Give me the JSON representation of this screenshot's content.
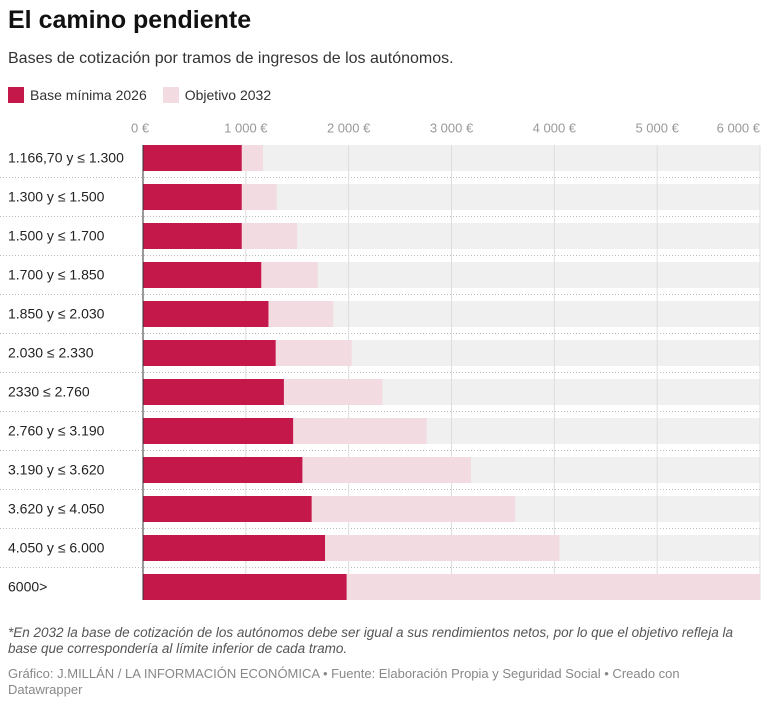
{
  "chart_data": {
    "type": "bar",
    "title": "El camino pendiente",
    "subtitle": "Bases de cotización por tramos de ingresos de los autónomos.",
    "categories": [
      "1.166,70 y ≤ 1.300",
      "1.300 y ≤ 1.500",
      "1.500 y ≤ 1.700",
      "1.700 y ≤ 1.850",
      "1.850 y ≤ 2.030",
      "2.030 ≤ 2.330",
      "2330 ≤ 2.760",
      "2.760 y ≤ 3.190",
      "3.190 y ≤ 3.620",
      "3.620 y ≤ 4.050",
      "4.050 y ≤ 6.000",
      "6000>"
    ],
    "series": [
      {
        "name": "Objetivo 2032",
        "color": "#f2dce2",
        "values": [
          1166.7,
          1300,
          1500,
          1700,
          1850,
          2030,
          2330,
          2760,
          3190,
          3620,
          4050,
          6000
        ]
      },
      {
        "name": "Base mínima 2026",
        "color": "#c4174a",
        "values": [
          960,
          960,
          960,
          1150,
          1220,
          1290,
          1370,
          1460,
          1550,
          1640,
          1770,
          1980
        ]
      }
    ],
    "xlim": [
      0,
      6000
    ],
    "xticks": [
      {
        "value": 0,
        "label": "0 €"
      },
      {
        "value": 1000,
        "label": "1 000 €"
      },
      {
        "value": 2000,
        "label": "2 000 €"
      },
      {
        "value": 3000,
        "label": "3 000 €"
      },
      {
        "value": 4000,
        "label": "4 000 €"
      },
      {
        "value": 5000,
        "label": "5 000 €"
      },
      {
        "value": 6000,
        "label": "6 000 €"
      }
    ],
    "grid": true,
    "note": "*En 2032 la base de cotización de los autónomos debe ser igual a sus rendimientos netos, por lo que el objetivo refleja la base que correspondería al límite inferior de cada tramo.",
    "credit": "Gráfico: J.MILLÁN / LA INFORMACIÓN ECONÓMICA • Fuente: Elaboración Propia y Seguridad Social • Creado con Datawrapper"
  }
}
